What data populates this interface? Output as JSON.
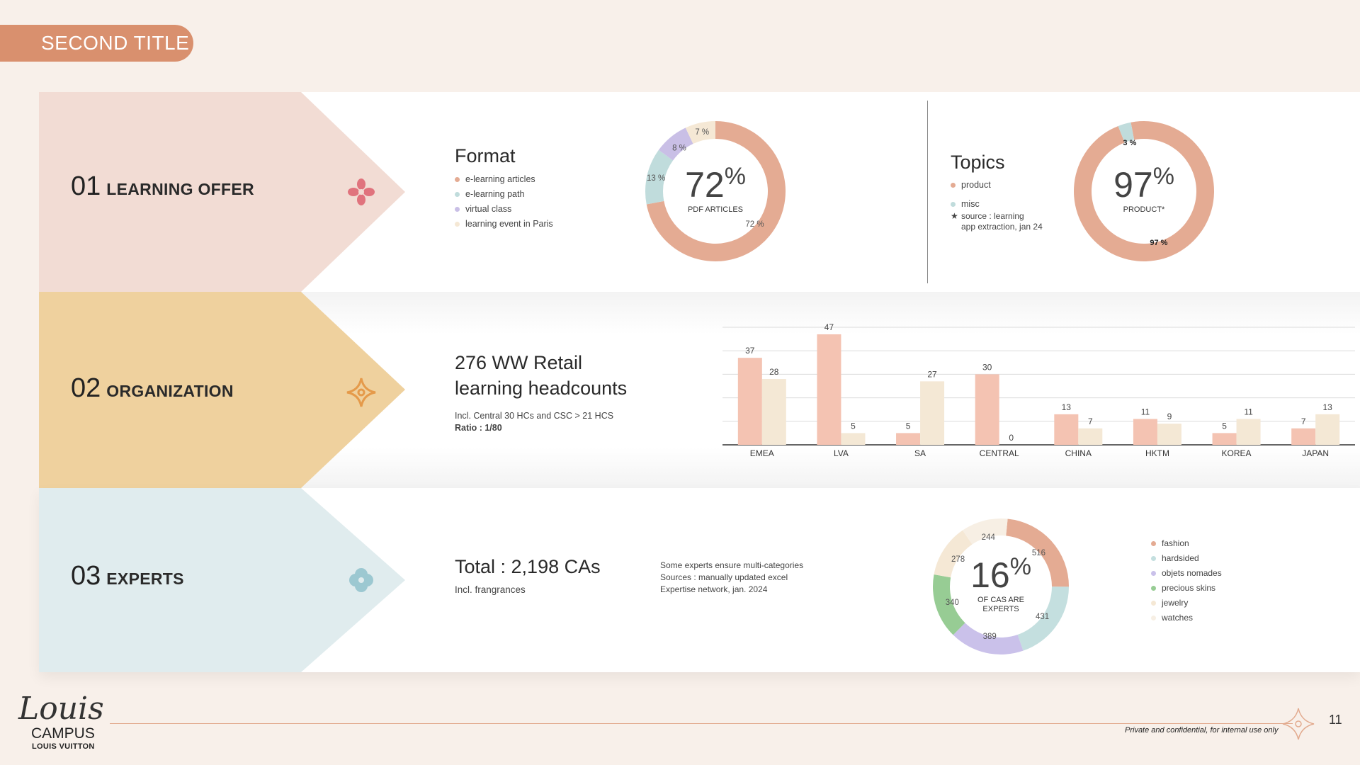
{
  "page": {
    "title": "SECOND TITLE",
    "page_number": "11",
    "confidential": "Private and confidential, for internal use only"
  },
  "logo": {
    "script": "Louis",
    "campus": "CAMPUS",
    "brand": "LOUIS VUITTON"
  },
  "sections": {
    "s1": {
      "number": "01",
      "label": "LEARNING OFFER",
      "bg": "#f2dcd4",
      "icon": "pink-flower-icon"
    },
    "s2": {
      "number": "02",
      "label": "ORGANIZATION",
      "bg": "#efd19e",
      "icon": "orange-star-icon"
    },
    "s3": {
      "number": "03",
      "label": "EXPERTS",
      "bg": "#e0ecee",
      "icon": "blue-quatrefoil-icon"
    }
  },
  "format": {
    "title": "Format",
    "center_value": "72",
    "center_pct": "%",
    "center_caption": "PDF ARTICLES"
  },
  "topics": {
    "title": "Topics",
    "center_value": "97",
    "center_pct": "%",
    "center_caption": "PRODUCT*",
    "note_line1": "source : learning",
    "note_line2": "app extraction, jan 24"
  },
  "organization": {
    "title_line1": "276 WW Retail",
    "title_line2": "learning headcounts",
    "sub1": "Incl. Central 30 HCs and CSC > 21 HCS",
    "sub2": "Ratio : 1/80"
  },
  "experts": {
    "title": "Total : 2,198 CAs",
    "sub": "Incl. frangrances",
    "note1": "Some experts ensure multi-categories",
    "note2": "Sources : manually updated excel",
    "note3": "Expertise network, jan. 2024",
    "center_value": "16",
    "center_pct": "%",
    "center_caption1": "OF CAS ARE",
    "center_caption2": "EXPERTS"
  },
  "chart_data": [
    {
      "type": "pie",
      "title": "Format",
      "categories": [
        "e-learning articles",
        "e-learning path",
        "virtual class",
        "learning event in Paris"
      ],
      "values": [
        72,
        13,
        8,
        7
      ],
      "labels": [
        "72 %",
        "13 %",
        "8 %",
        "7 %"
      ],
      "colors": [
        "#e4ab93",
        "#c0dcdc",
        "#c9bfe6",
        "#f5e8d5"
      ]
    },
    {
      "type": "pie",
      "title": "Topics",
      "categories": [
        "product",
        "misc"
      ],
      "values": [
        97,
        3
      ],
      "labels": [
        "97 %",
        "3 %"
      ],
      "colors": [
        "#e4ab93",
        "#c0dcdc"
      ]
    },
    {
      "type": "bar",
      "categories": [
        "EMEA",
        "LVA",
        "SA",
        "CENTRAL",
        "CHINA",
        "HKTM",
        "KOREA",
        "JAPAN"
      ],
      "series": [
        {
          "values": [
            37,
            47,
            5,
            30,
            13,
            11,
            5,
            7
          ],
          "color": "#f4c3b2"
        },
        {
          "values": [
            28,
            5,
            27,
            0,
            7,
            9,
            11,
            13
          ],
          "color": "#f4e8d5"
        }
      ],
      "ylim": [
        0,
        50
      ],
      "grid": true
    },
    {
      "type": "pie",
      "categories": [
        "fashion",
        "hardsided",
        "objets nomades",
        "precious skins",
        "jewelry",
        "watches"
      ],
      "values": [
        516,
        431,
        389,
        340,
        278,
        244
      ],
      "labels": [
        "516",
        "431",
        "389",
        "340",
        "278",
        "244"
      ],
      "colors": [
        "#e4ab93",
        "#c4dfdf",
        "#cac1ea",
        "#97cc94",
        "#f5e8d5",
        "#f7efe4"
      ]
    }
  ]
}
